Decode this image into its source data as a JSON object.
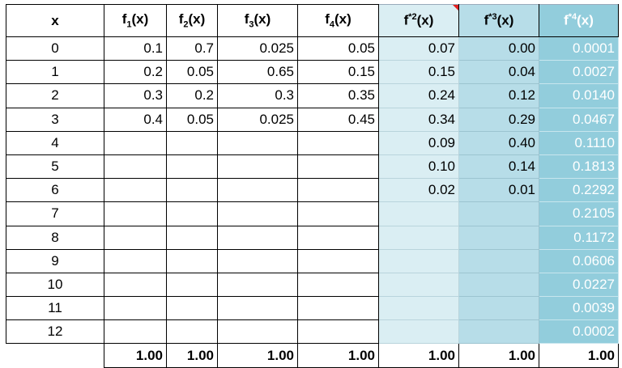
{
  "table": {
    "header": [
      {
        "main": "x"
      },
      {
        "main": "f",
        "sub": "1",
        "tail": "(x)"
      },
      {
        "main": "f",
        "sub": "2",
        "tail": "(x)"
      },
      {
        "main": "f",
        "sub": "3",
        "tail": "(x)"
      },
      {
        "main": "f",
        "sub": "4",
        "tail": "(x)"
      },
      {
        "main": "f",
        "sup": "*2",
        "tail": "(x)"
      },
      {
        "main": "f",
        "sup": "*3",
        "tail": "(x)"
      },
      {
        "main": "f",
        "sup": "*4",
        "tail": "(x)"
      }
    ],
    "rows": [
      [
        "0",
        "0.1",
        "0.7",
        "0.025",
        "0.05",
        "0.07",
        "0.00",
        "0.0001"
      ],
      [
        "1",
        "0.2",
        "0.05",
        "0.65",
        "0.15",
        "0.15",
        "0.04",
        "0.0027"
      ],
      [
        "2",
        "0.3",
        "0.2",
        "0.3",
        "0.35",
        "0.24",
        "0.12",
        "0.0140"
      ],
      [
        "3",
        "0.4",
        "0.05",
        "0.025",
        "0.45",
        "0.34",
        "0.29",
        "0.0467"
      ],
      [
        "4",
        null,
        null,
        null,
        null,
        "0.09",
        "0.40",
        "0.1110"
      ],
      [
        "5",
        null,
        null,
        null,
        null,
        "0.10",
        "0.14",
        "0.1813"
      ],
      [
        "6",
        null,
        null,
        null,
        null,
        "0.02",
        "0.01",
        "0.2292"
      ],
      [
        "7",
        null,
        null,
        null,
        null,
        null,
        null,
        "0.2105"
      ],
      [
        "8",
        null,
        null,
        null,
        null,
        null,
        null,
        "0.1172"
      ],
      [
        "9",
        null,
        null,
        null,
        null,
        null,
        null,
        "0.0606"
      ],
      [
        "10",
        null,
        null,
        null,
        null,
        null,
        null,
        "0.0227"
      ],
      [
        "11",
        null,
        null,
        null,
        null,
        null,
        null,
        "0.0039"
      ],
      [
        "12",
        null,
        null,
        null,
        null,
        null,
        null,
        "0.0002"
      ]
    ],
    "totals": [
      null,
      "1.00",
      "1.00",
      "1.00",
      "1.00",
      "1.00",
      "1.00",
      "1.00"
    ]
  }
}
